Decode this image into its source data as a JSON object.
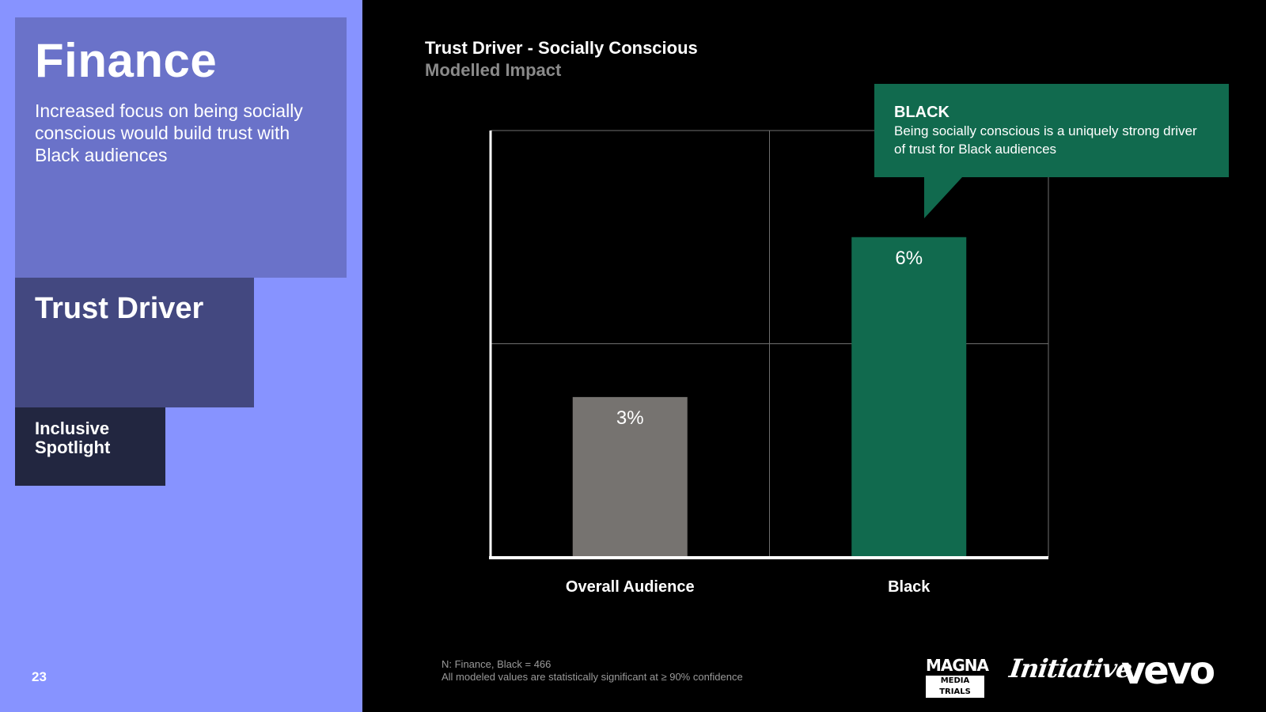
{
  "sidebar": {
    "title": "Finance",
    "description": "Increased focus on being socially conscious would build trust with Black audiences",
    "section": "Trust Driver",
    "tag": "Inclusive Spotlight",
    "page_number": "23"
  },
  "chart_header": {
    "title": "Trust Driver -  Socially Conscious",
    "subtitle": "Modelled Impact"
  },
  "callout": {
    "heading": "BLACK",
    "body": "Being socially conscious is a uniquely strong driver of trust for Black audiences"
  },
  "chart_data": {
    "type": "bar",
    "title": "Trust Driver -  Socially Conscious",
    "subtitle": "Modelled Impact",
    "categories": [
      "Overall Audience",
      "Black"
    ],
    "values": [
      3,
      6
    ],
    "value_labels": [
      "3%",
      "6%"
    ],
    "colors": [
      "#767370",
      "#116a4e"
    ],
    "ylim": [
      0,
      8
    ],
    "grid": true,
    "xlabel": "",
    "ylabel": ""
  },
  "footnote": {
    "line1": "N: Finance, Black  = 466",
    "line2": "All modeled values are statistically significant at ≥ 90% confidence"
  },
  "logos": {
    "magna": "MAGNA",
    "magna_sub": "MEDIA TRIALS",
    "initiative": "Initiative",
    "vevo": "vevo"
  },
  "colors": {
    "sidebar_bg": "#8793ff",
    "box1": "#6a72c9",
    "box2": "#434880",
    "box3": "#222640",
    "accent_green": "#116a4e",
    "bar_gray": "#767370"
  }
}
